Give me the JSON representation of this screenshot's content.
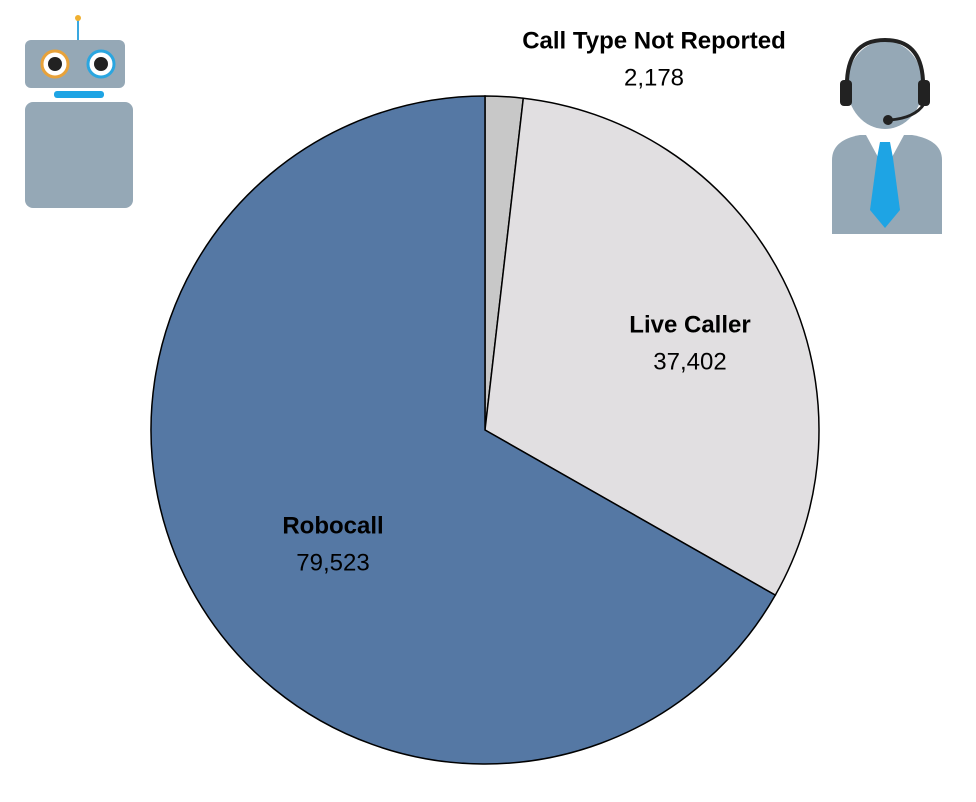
{
  "chart_data": {
    "type": "pie",
    "categories": [
      "Call Type Not Reported",
      "Live Caller",
      "Robocall"
    ],
    "values": [
      2178,
      37402,
      79523
    ],
    "value_labels": [
      "2,178",
      "37,402",
      "79,523"
    ],
    "colors": [
      "#c8c8c8",
      "#e1dfe1",
      "#5578a4"
    ]
  }
}
